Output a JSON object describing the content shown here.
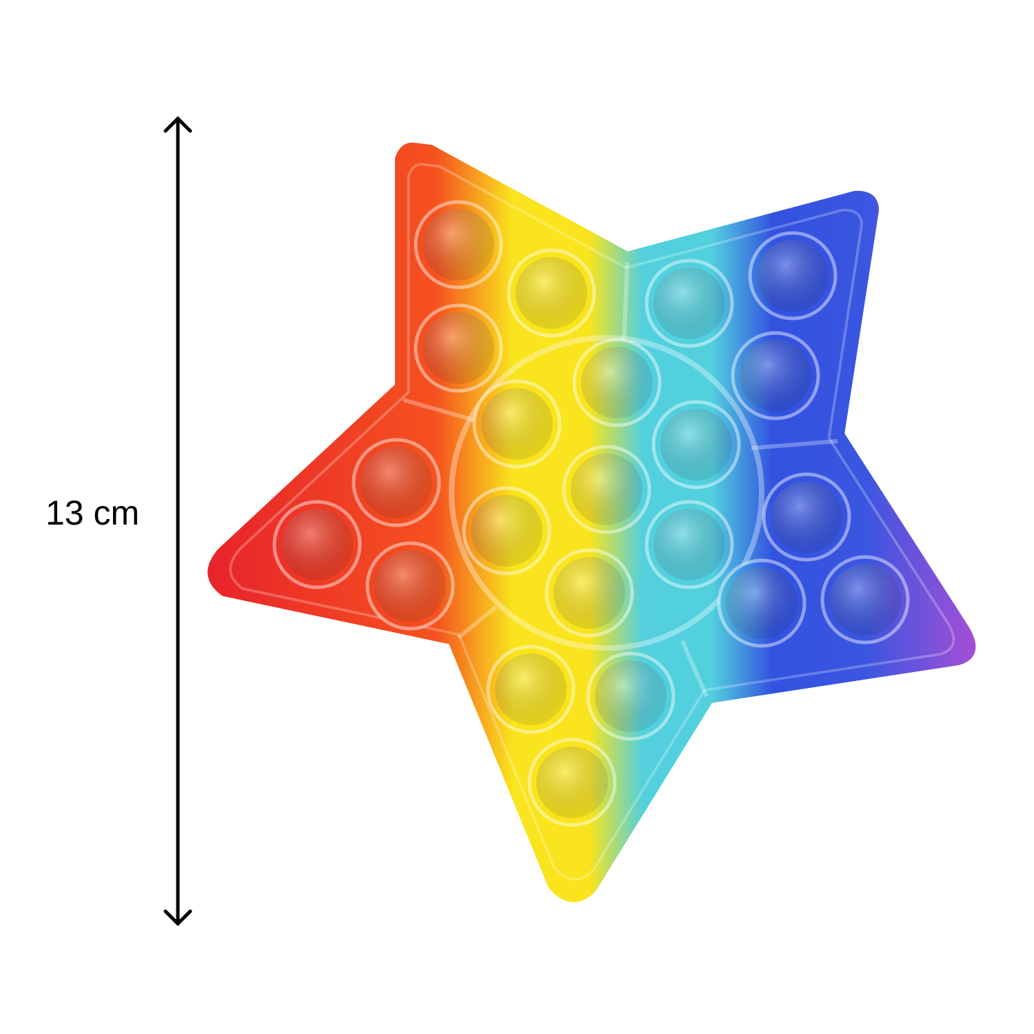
{
  "dimension": {
    "label": "13 cm",
    "color": "#000000"
  },
  "product": {
    "shape": "star",
    "palette": [
      "#e8232b",
      "#f5521f",
      "#f9e41d",
      "#52d0de",
      "#3252e0",
      "#a14fd6"
    ],
    "bubble_count": 22
  }
}
